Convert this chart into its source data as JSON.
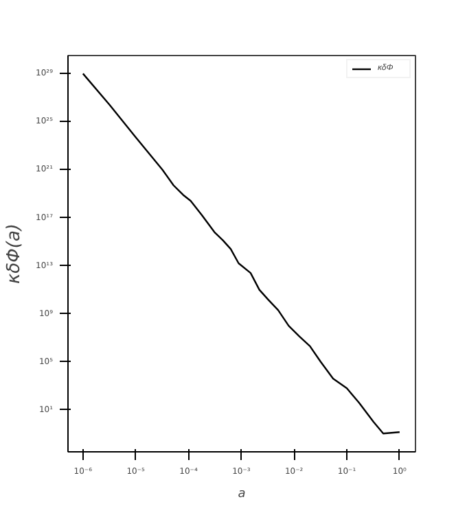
{
  "chart_data": {
    "type": "line",
    "xlabel": "a",
    "ylabel": "κδΦ(a)",
    "log": "xy",
    "grid": false,
    "legend": "top right",
    "marker": "none",
    "line_style": "solid",
    "xlim": [
      5.2e-07,
      2.0
    ],
    "ylim": [
      0.0032,
      3.2e+30
    ],
    "xticks": [
      {
        "value": 1e-06,
        "label": "10⁻⁶"
      },
      {
        "value": 1e-05,
        "label": "10⁻⁵"
      },
      {
        "value": 0.0001,
        "label": "10⁻⁴"
      },
      {
        "value": 0.001,
        "label": "10⁻³"
      },
      {
        "value": 0.01,
        "label": "10⁻²"
      },
      {
        "value": 0.1,
        "label": "10⁻¹"
      },
      {
        "value": 1,
        "label": "10⁰"
      }
    ],
    "yticks": [
      {
        "value": 10.0,
        "label": "10¹"
      },
      {
        "value": 100000.0,
        "label": "10⁵"
      },
      {
        "value": 1000000000.0,
        "label": "10⁹"
      },
      {
        "value": 10000000000000.0,
        "label": "10¹³"
      },
      {
        "value": 1e+17,
        "label": "10¹⁷"
      },
      {
        "value": 1e+21,
        "label": "10²¹"
      },
      {
        "value": 1e+25,
        "label": "10²⁵"
      },
      {
        "value": 1e+29,
        "label": "10²⁹"
      }
    ],
    "x": [
      1e-06,
      3.2e-06,
      1e-05,
      3.2e-05,
      5.2e-05,
      7.9e-05,
      0.00011,
      0.00018,
      0.00031,
      0.00045,
      0.00063,
      0.00089,
      0.0015,
      0.0022,
      0.0032,
      0.005,
      0.0079,
      0.0126,
      0.02,
      0.032,
      0.055,
      0.1,
      0.17,
      0.32,
      0.49,
      1.0
    ],
    "series": [
      {
        "name": "κδΦ",
        "color": "#000000",
        "values": [
          1e+29,
          2.5e+26,
          5e+23,
          1e+21,
          5e+19,
          8e+18,
          2.5e+18,
          1.6e+17,
          6300000000000000.0,
          1300000000000000.0,
          250000000000000.0,
          16000000000000.0,
          2500000000000.0,
          100000000000.0,
          16000000000.0,
          2000000000.0,
          100000000.0,
          13000000.0,
          2000000.0,
          100000.0,
          4000.0,
          630,
          40,
          1.0,
          0.107,
          0.141
        ]
      }
    ]
  }
}
